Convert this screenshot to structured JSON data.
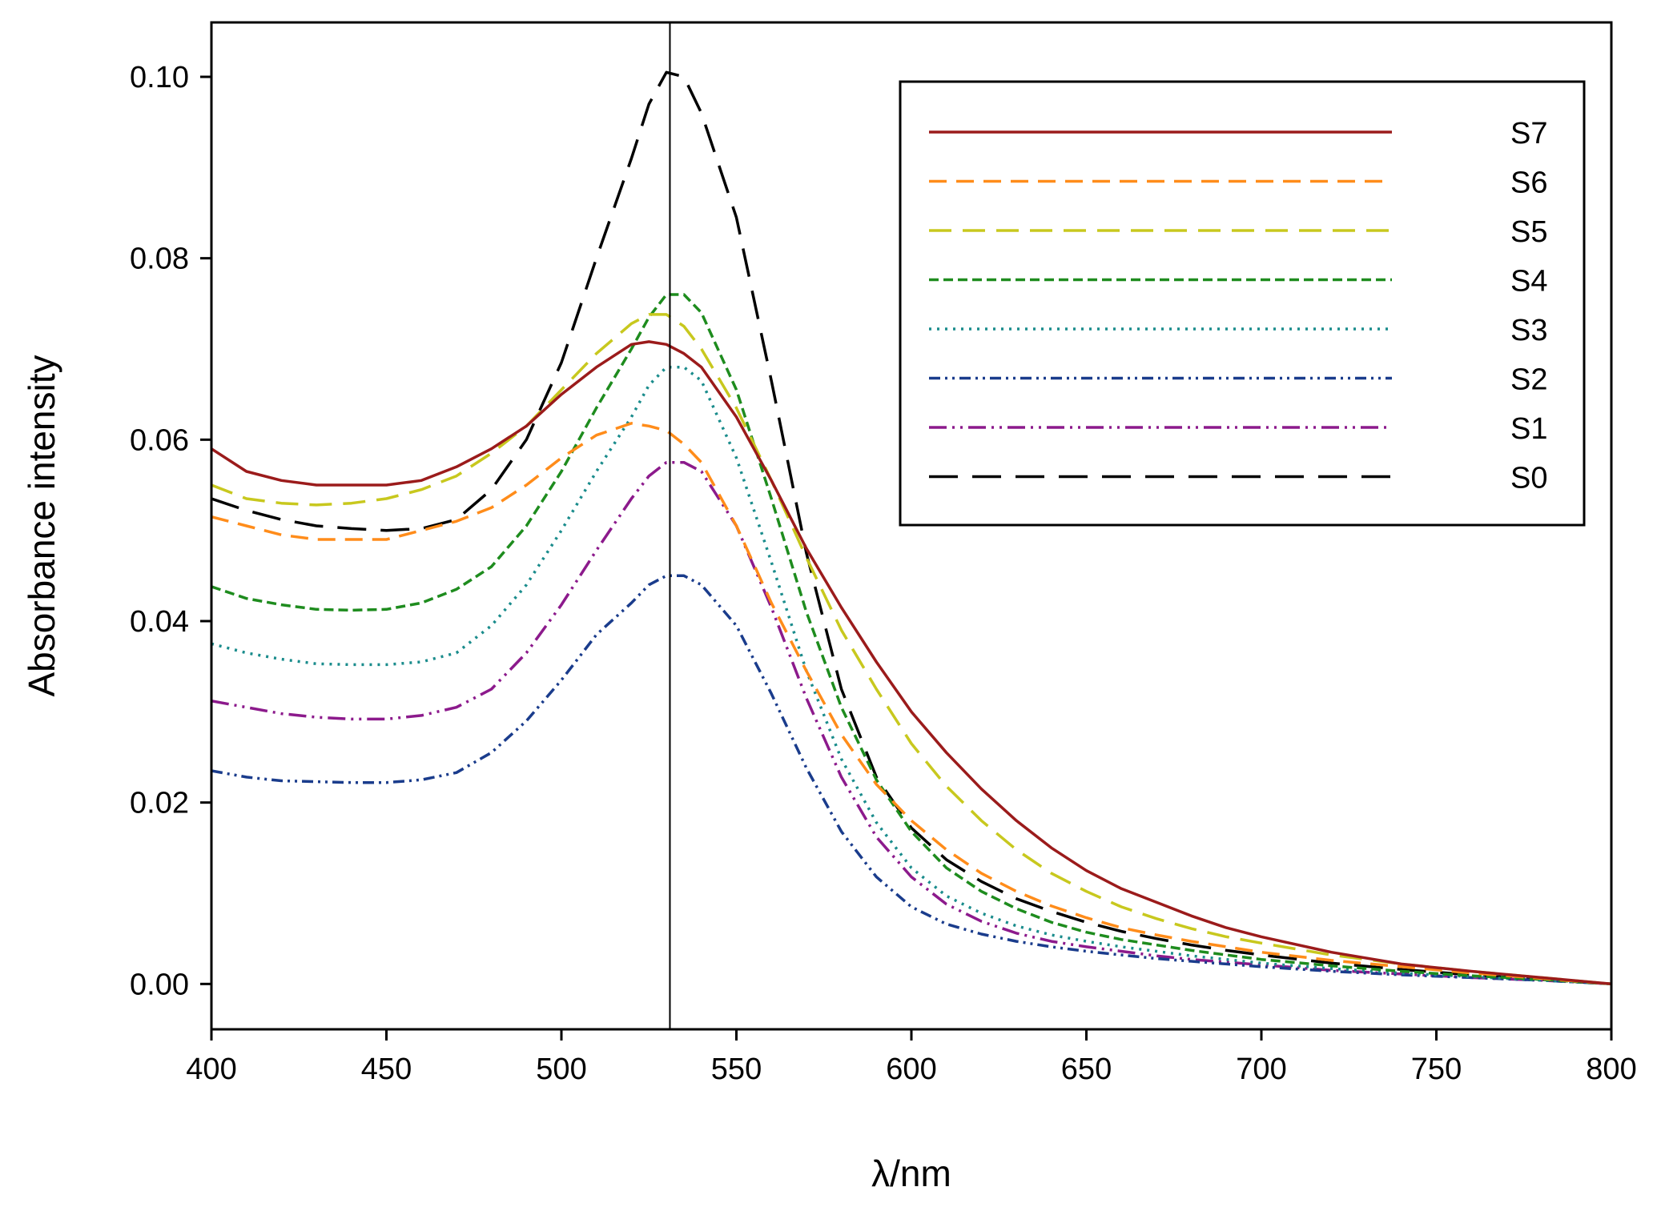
{
  "chart_data": {
    "type": "line",
    "title": "",
    "xlabel": "λ/nm",
    "ylabel": "Absorbance intensity",
    "xlim": [
      400,
      800
    ],
    "ylim": [
      -0.005,
      0.106
    ],
    "xticks": [
      400,
      450,
      500,
      550,
      600,
      650,
      700,
      750,
      800
    ],
    "xtick_labels": [
      "400",
      "450",
      "500",
      "550",
      "600",
      "650",
      "700",
      "750",
      "800"
    ],
    "yticks": [
      0.0,
      0.02,
      0.04,
      0.06,
      0.08,
      0.1
    ],
    "ytick_labels": [
      "0.00",
      "0.02",
      "0.04",
      "0.06",
      "0.08",
      "0.10"
    ],
    "grid": false,
    "legend_position": "top-right",
    "reference_line": {
      "x": 531
    },
    "x": [
      400,
      410,
      420,
      430,
      440,
      450,
      460,
      470,
      480,
      490,
      500,
      510,
      520,
      525,
      530,
      535,
      540,
      550,
      560,
      570,
      580,
      590,
      600,
      610,
      620,
      630,
      640,
      650,
      660,
      670,
      680,
      690,
      700,
      720,
      740,
      760,
      780,
      800
    ],
    "series": [
      {
        "name": "S7",
        "color": "#9B1B1B",
        "dash": "",
        "values": [
          0.059,
          0.0565,
          0.0555,
          0.055,
          0.055,
          0.055,
          0.0555,
          0.057,
          0.059,
          0.0615,
          0.065,
          0.068,
          0.0705,
          0.0708,
          0.0705,
          0.0695,
          0.068,
          0.0625,
          0.0555,
          0.048,
          0.0415,
          0.0355,
          0.03,
          0.0255,
          0.0215,
          0.018,
          0.015,
          0.0125,
          0.0105,
          0.009,
          0.0075,
          0.0062,
          0.0052,
          0.0035,
          0.0022,
          0.0014,
          0.0007,
          0.0
        ]
      },
      {
        "name": "S6",
        "color": "#FF8C1A",
        "dash": "22,12",
        "values": [
          0.0515,
          0.0505,
          0.0495,
          0.049,
          0.049,
          0.049,
          0.05,
          0.051,
          0.0525,
          0.055,
          0.058,
          0.0605,
          0.0618,
          0.0615,
          0.061,
          0.0595,
          0.0575,
          0.0505,
          0.042,
          0.0345,
          0.0275,
          0.022,
          0.018,
          0.0148,
          0.0122,
          0.0102,
          0.0086,
          0.0073,
          0.0062,
          0.0054,
          0.0047,
          0.0041,
          0.0035,
          0.0026,
          0.0019,
          0.0012,
          0.0006,
          0.0
        ]
      },
      {
        "name": "S5",
        "color": "#C8C81E",
        "dash": "28,14",
        "values": [
          0.055,
          0.0535,
          0.053,
          0.0528,
          0.053,
          0.0535,
          0.0545,
          0.056,
          0.0585,
          0.0615,
          0.0655,
          0.0695,
          0.0728,
          0.0738,
          0.0738,
          0.0725,
          0.07,
          0.0635,
          0.0555,
          0.047,
          0.039,
          0.0325,
          0.0265,
          0.0218,
          0.018,
          0.0148,
          0.0122,
          0.0102,
          0.0085,
          0.0072,
          0.0061,
          0.0052,
          0.0045,
          0.0032,
          0.0022,
          0.0014,
          0.0007,
          0.0
        ]
      },
      {
        "name": "S4",
        "color": "#1E8C1E",
        "dash": "12,6",
        "values": [
          0.0438,
          0.0425,
          0.0418,
          0.0413,
          0.0412,
          0.0413,
          0.042,
          0.0435,
          0.046,
          0.0505,
          0.0565,
          0.0635,
          0.07,
          0.0735,
          0.076,
          0.076,
          0.074,
          0.0655,
          0.0535,
          0.041,
          0.0305,
          0.0225,
          0.0168,
          0.0128,
          0.0102,
          0.0083,
          0.0068,
          0.0057,
          0.0049,
          0.0043,
          0.0037,
          0.0032,
          0.0027,
          0.002,
          0.0014,
          0.0009,
          0.0005,
          0.0
        ]
      },
      {
        "name": "S3",
        "color": "#1A8C8C",
        "dash": "3,7",
        "values": [
          0.0375,
          0.0365,
          0.0358,
          0.0353,
          0.0352,
          0.0352,
          0.0355,
          0.0365,
          0.0395,
          0.044,
          0.05,
          0.0565,
          0.0625,
          0.066,
          0.068,
          0.068,
          0.0665,
          0.058,
          0.0465,
          0.0345,
          0.0248,
          0.0178,
          0.0128,
          0.0097,
          0.0078,
          0.0064,
          0.0054,
          0.0047,
          0.0041,
          0.0036,
          0.0031,
          0.0027,
          0.0023,
          0.0017,
          0.0012,
          0.0008,
          0.0004,
          0.0
        ]
      },
      {
        "name": "S2",
        "color": "#1A3C8C",
        "dash": "14,6,3,6,3,6",
        "values": [
          0.0235,
          0.0228,
          0.0224,
          0.0223,
          0.0222,
          0.0222,
          0.0225,
          0.0233,
          0.0255,
          0.029,
          0.0335,
          0.0385,
          0.042,
          0.044,
          0.045,
          0.045,
          0.044,
          0.0395,
          0.032,
          0.0238,
          0.0168,
          0.0118,
          0.0085,
          0.0066,
          0.0055,
          0.0047,
          0.0041,
          0.0036,
          0.0032,
          0.0028,
          0.0025,
          0.0022,
          0.0019,
          0.0014,
          0.001,
          0.0007,
          0.0004,
          0.0
        ]
      },
      {
        "name": "S1",
        "color": "#8C1A8C",
        "dash": "22,7,3,7,3,7",
        "values": [
          0.0312,
          0.0305,
          0.0298,
          0.0294,
          0.0292,
          0.0292,
          0.0296,
          0.0305,
          0.0325,
          0.0365,
          0.0418,
          0.0478,
          0.0535,
          0.056,
          0.0575,
          0.0575,
          0.0565,
          0.0505,
          0.0415,
          0.0315,
          0.0228,
          0.0162,
          0.0118,
          0.0088,
          0.0069,
          0.0056,
          0.0047,
          0.0041,
          0.0036,
          0.0031,
          0.0027,
          0.0024,
          0.0021,
          0.0015,
          0.0011,
          0.0007,
          0.0004,
          0.0
        ]
      },
      {
        "name": "S0",
        "color": "#000000",
        "dash": "36,18",
        "values": [
          0.0535,
          0.0522,
          0.0512,
          0.0505,
          0.0502,
          0.05,
          0.0502,
          0.0512,
          0.0545,
          0.06,
          0.0685,
          0.08,
          0.091,
          0.097,
          0.1005,
          0.1,
          0.096,
          0.0845,
          0.0665,
          0.0475,
          0.0325,
          0.0228,
          0.0172,
          0.0137,
          0.0113,
          0.0094,
          0.008,
          0.0068,
          0.0058,
          0.005,
          0.0043,
          0.0037,
          0.0032,
          0.0023,
          0.0016,
          0.001,
          0.0005,
          0.0
        ]
      }
    ],
    "legend_order": [
      "S7",
      "S6",
      "S5",
      "S4",
      "S3",
      "S2",
      "S1",
      "S0"
    ]
  }
}
